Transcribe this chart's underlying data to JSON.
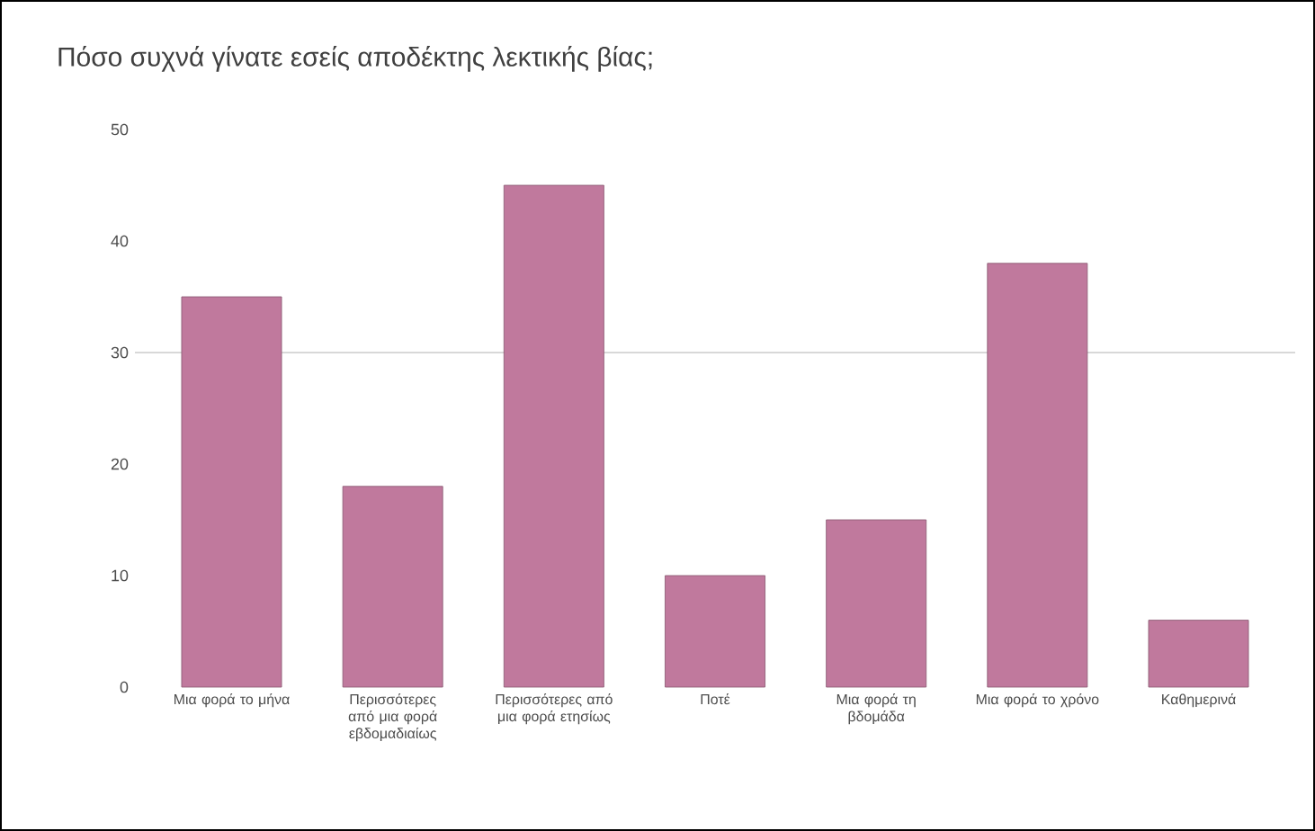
{
  "chart_data": {
    "type": "bar",
    "title": "Πόσο συχνά γίνατε εσείς αποδέκτης λεκτικής βίας;",
    "categories": [
      "Μια φορά το μήνα",
      "Περισσότερες από μια φορά εβδομαδιαίως",
      "Περισσότερες από μια φορά ετησίως",
      "Ποτέ",
      "Μια φορά τη βδομάδα",
      "Μια φορά το χρόνο",
      "Καθημερινά"
    ],
    "values": [
      35,
      18,
      45,
      10,
      15,
      38,
      6
    ],
    "color": "#c0799d",
    "ylim": [
      0,
      50
    ],
    "yticks": [
      0,
      10,
      20,
      30,
      40,
      50
    ],
    "ref_lines": [
      {
        "axis": "y",
        "value": 30
      }
    ]
  }
}
